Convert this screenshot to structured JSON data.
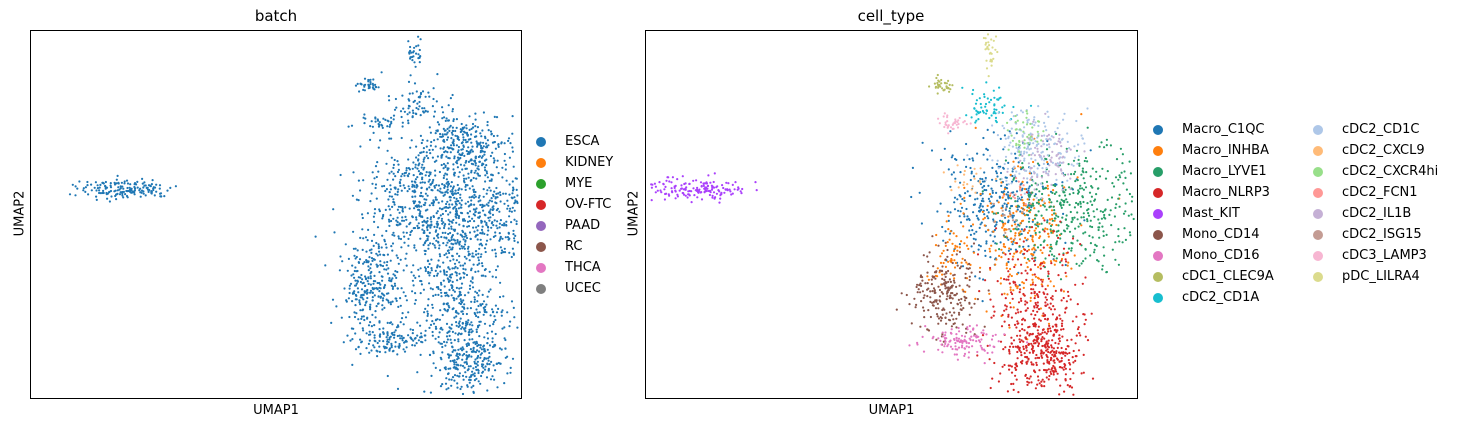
{
  "chart_data": [
    {
      "type": "scatter",
      "title": "batch",
      "xlabel": "UMAP1",
      "ylabel": "UMAP2",
      "grid": false,
      "ticks": false,
      "legend_position": "right",
      "legend": [
        {
          "label": "ESCA",
          "color": "#1f77b4"
        },
        {
          "label": "KIDNEY",
          "color": "#ff7f0e"
        },
        {
          "label": "MYE",
          "color": "#2ca02c"
        },
        {
          "label": "OV-FTC",
          "color": "#d62728"
        },
        {
          "label": "PAAD",
          "color": "#9467bd"
        },
        {
          "label": "RC",
          "color": "#8c564b"
        },
        {
          "label": "THCA",
          "color": "#e377c2"
        },
        {
          "label": "UCEC",
          "color": "#7f7f7f"
        }
      ],
      "plotted_series": [
        "ESCA"
      ]
    },
    {
      "type": "scatter",
      "title": "cell_type",
      "xlabel": "UMAP1",
      "ylabel": "UMAP2",
      "grid": false,
      "ticks": false,
      "legend_position": "right",
      "legend_columns": 2,
      "legend": [
        {
          "label": "Macro_C1QC",
          "color": "#1f77b4"
        },
        {
          "label": "Macro_INHBA",
          "color": "#ff7f0e"
        },
        {
          "label": "Macro_LYVE1",
          "color": "#279e68"
        },
        {
          "label": "Macro_NLRP3",
          "color": "#d62728"
        },
        {
          "label": "Mast_KIT",
          "color": "#aa40fc"
        },
        {
          "label": "Mono_CD14",
          "color": "#8c564b"
        },
        {
          "label": "Mono_CD16",
          "color": "#e377c2"
        },
        {
          "label": "cDC1_CLEC9A",
          "color": "#b5bd61"
        },
        {
          "label": "cDC2_CD1A",
          "color": "#17becf"
        },
        {
          "label": "cDC2_CD1C",
          "color": "#aec7e8"
        },
        {
          "label": "cDC2_CXCL9",
          "color": "#ffbb78"
        },
        {
          "label": "cDC2_CXCR4hi",
          "color": "#98df8a"
        },
        {
          "label": "cDC2_FCN1",
          "color": "#ff9896"
        },
        {
          "label": "cDC2_IL1B",
          "color": "#c5b0d5"
        },
        {
          "label": "cDC2_ISG15",
          "color": "#c49c94"
        },
        {
          "label": "cDC3_LAMP3",
          "color": "#f7b6d2"
        },
        {
          "label": "pDC_LILRA4",
          "color": "#dbdb8d"
        }
      ]
    }
  ]
}
